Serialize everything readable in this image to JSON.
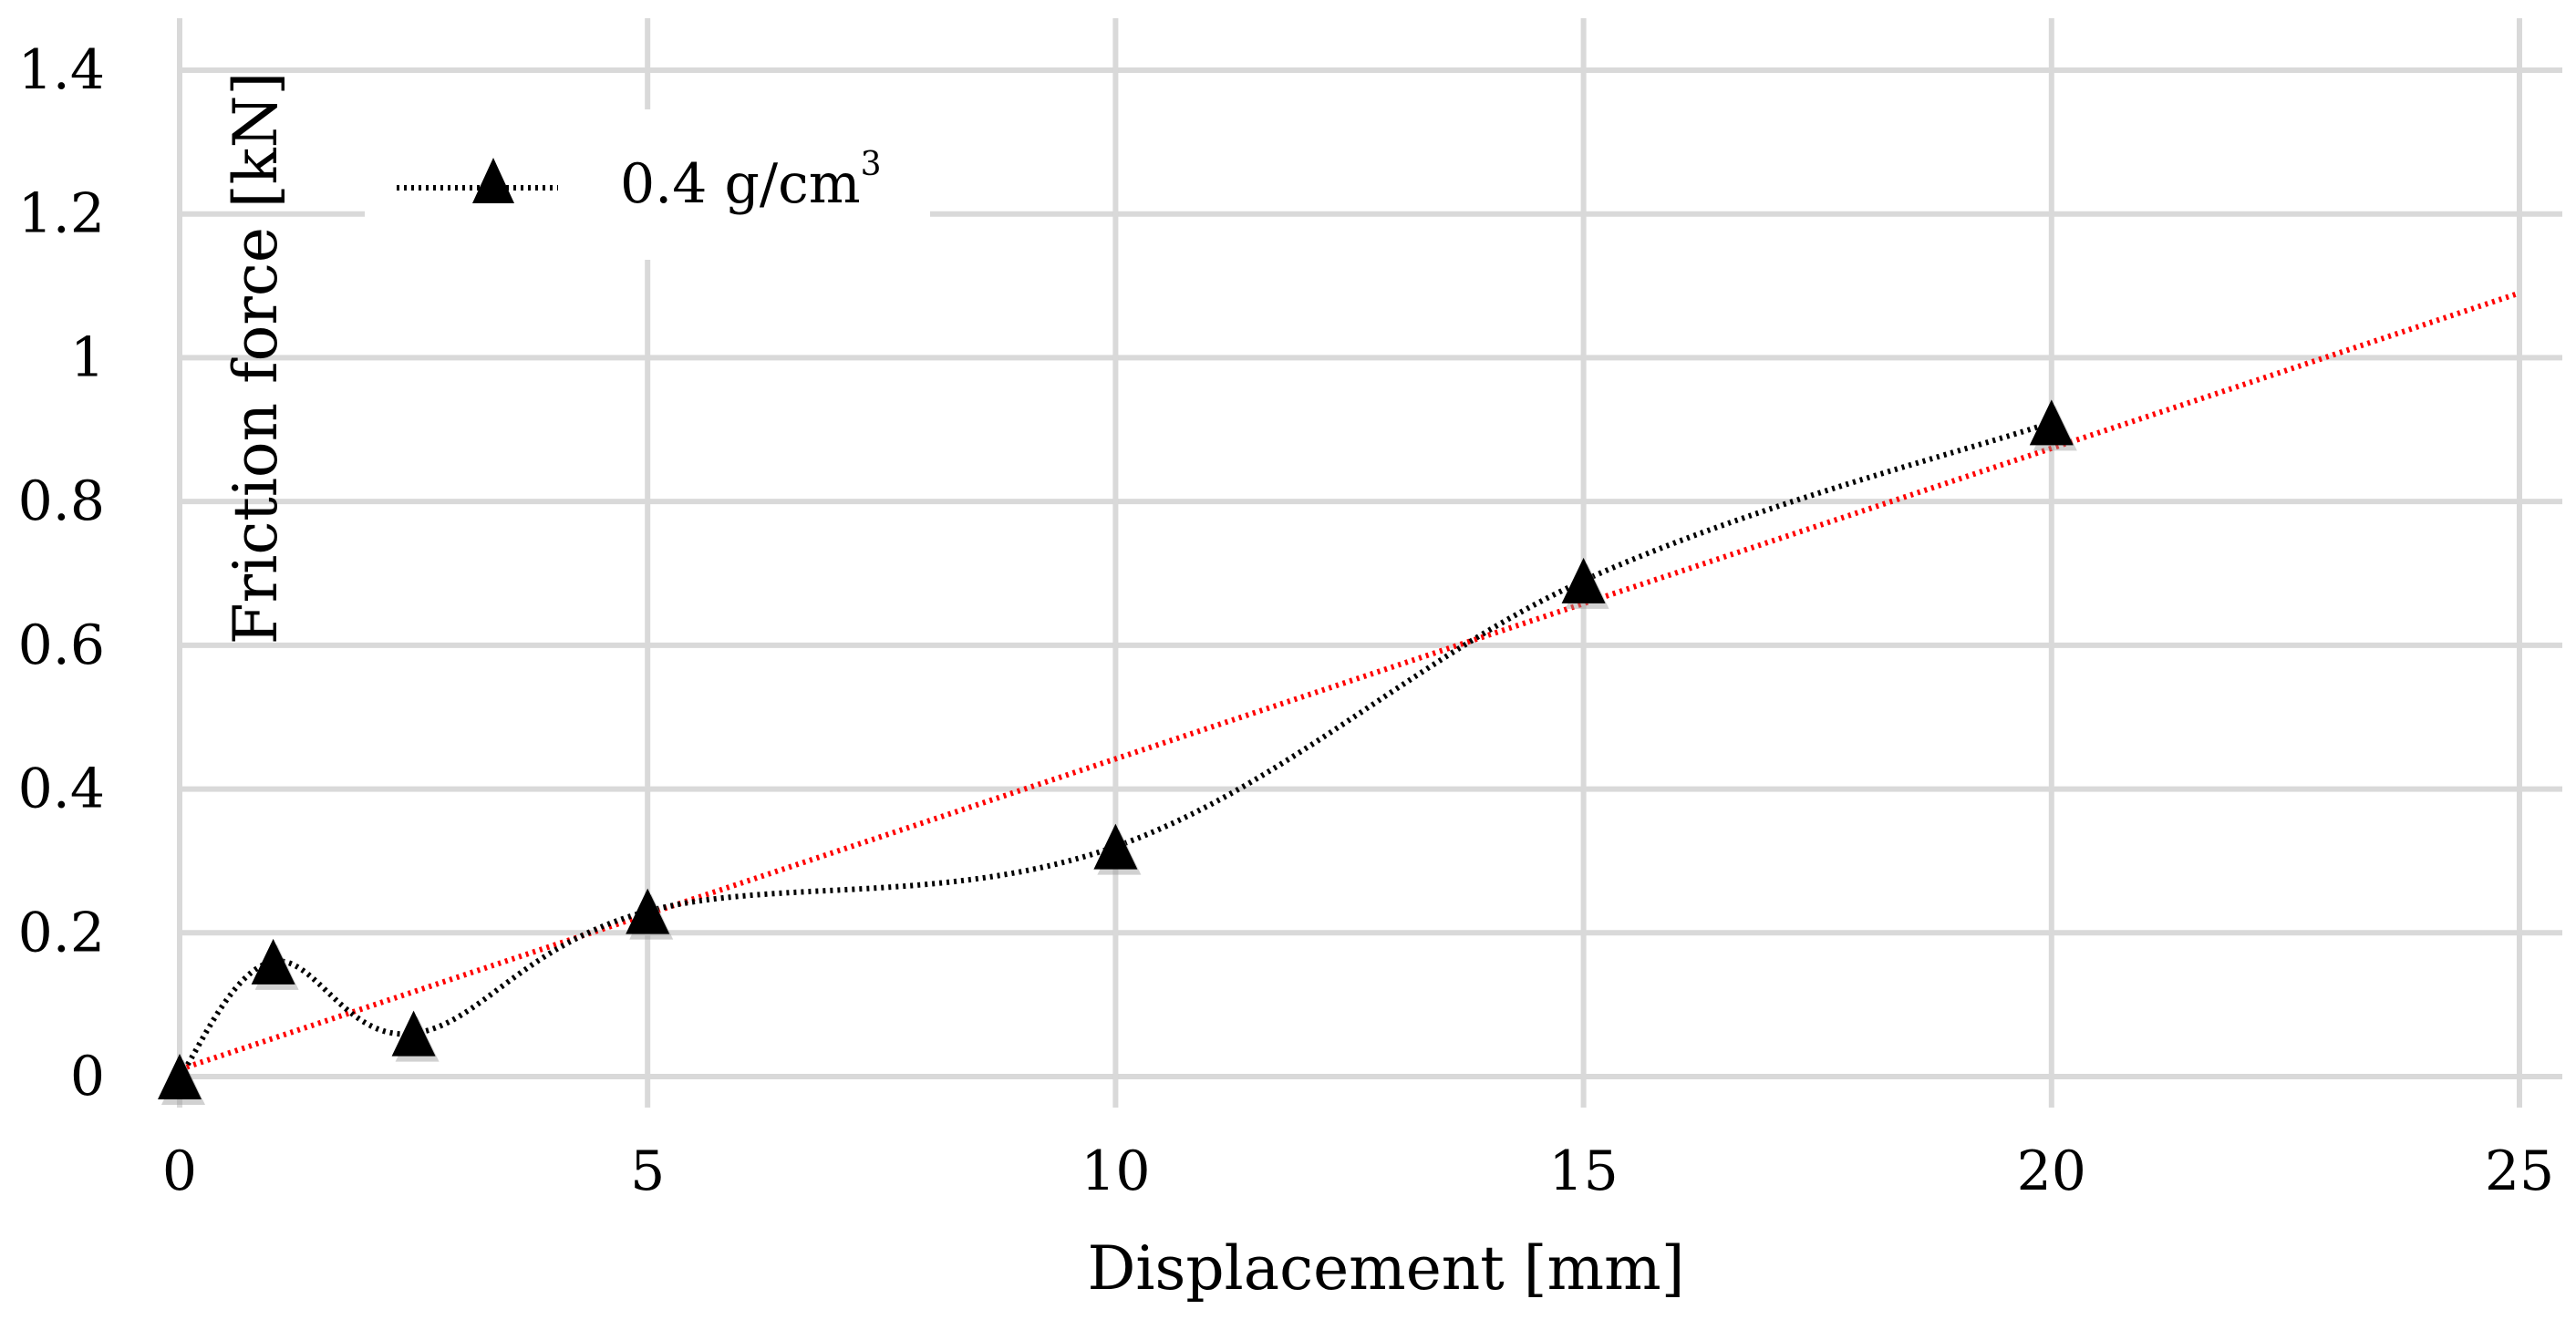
{
  "chart_data": {
    "type": "line",
    "title": "",
    "xlabel": "Displacement [mm]",
    "ylabel": "Friction force [kN]",
    "xlim": [
      0,
      25
    ],
    "ylim": [
      0,
      1.4
    ],
    "x_ticks": [
      "0",
      "5",
      "10",
      "15",
      "20",
      "25"
    ],
    "y_ticks": [
      "0",
      "0.2",
      "0.4",
      "0.6",
      "0.8",
      "1",
      "1.2",
      "1.4"
    ],
    "grid": true,
    "legend_position": "top-left",
    "series": [
      {
        "name": "0.4 g/cm",
        "name_superscript": "3",
        "marker": "triangle",
        "line_style": "dotted",
        "color": "#000000",
        "x": [
          0,
          1,
          2.5,
          5,
          10,
          15,
          20
        ],
        "y": [
          0,
          0.16,
          0.06,
          0.23,
          0.32,
          0.69,
          0.91
        ]
      }
    ],
    "trendline": {
      "type": "linear",
      "line_style": "dotted",
      "color": "#ff0000",
      "x": [
        0,
        25
      ],
      "y": [
        0.01,
        1.09
      ]
    }
  }
}
